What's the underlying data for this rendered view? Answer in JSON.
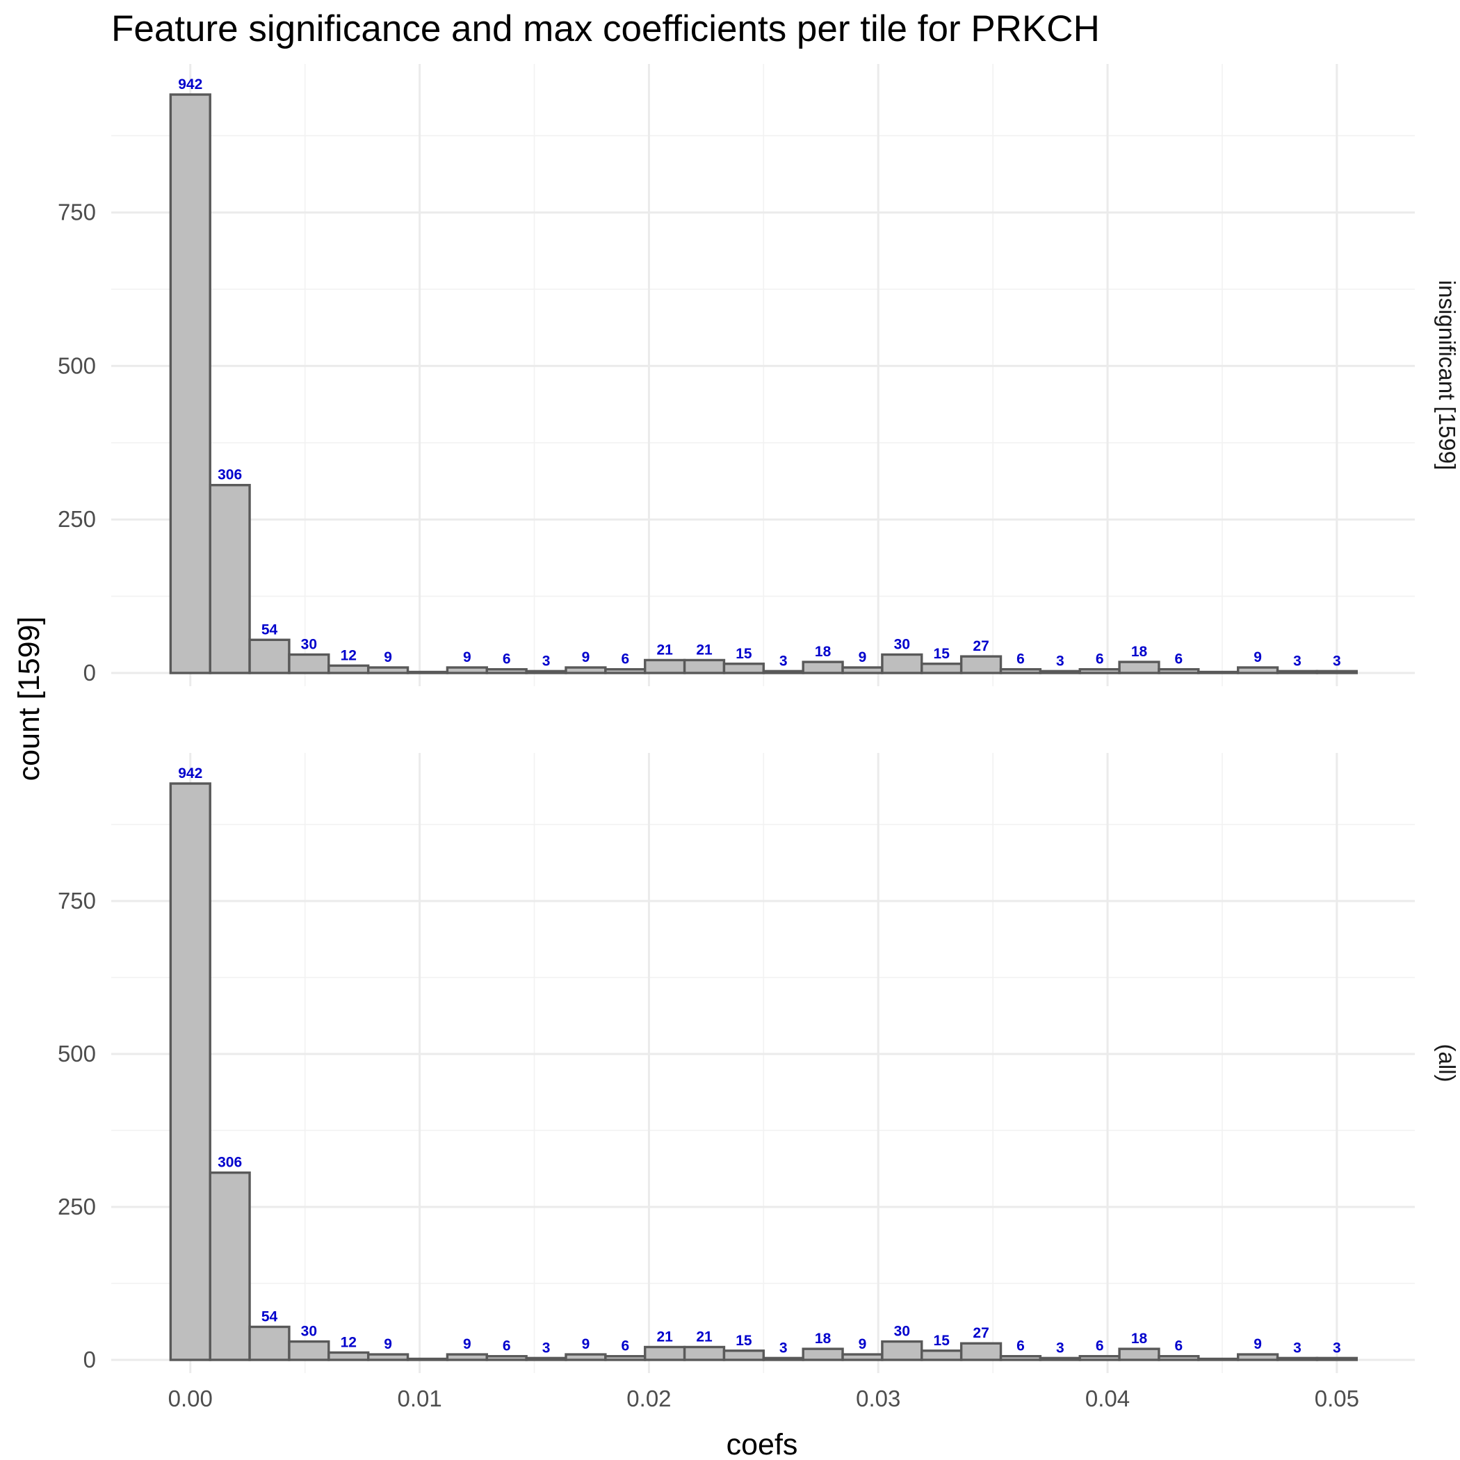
{
  "title": "Feature significance and max coefficients per tile for PRKCH",
  "chart_data": {
    "type": "bar",
    "subtype": "histogram",
    "title": "Feature significance and max coefficients per tile for PRKCH",
    "xlabel": "coefs",
    "ylabel": "count [1599]",
    "x_ticks": [
      "0.00",
      "0.01",
      "0.02",
      "0.03",
      "0.04",
      "0.05"
    ],
    "x_tick_values": [
      0,
      0.01,
      0.02,
      0.03,
      0.04,
      0.05
    ],
    "y_ticks": [
      "0",
      "250",
      "500",
      "750"
    ],
    "y_tick_values": [
      0,
      250,
      500,
      750
    ],
    "xlim": [
      -0.00345,
      0.0534
    ],
    "ylim": [
      0,
      990
    ],
    "bin_width": 0.001724,
    "bin_centers": [
      0,
      0.001724,
      0.003448,
      0.005172,
      0.006897,
      0.008621,
      0.010345,
      0.012069,
      0.013793,
      0.015517,
      0.017241,
      0.018966,
      0.02069,
      0.022414,
      0.024138,
      0.025862,
      0.027586,
      0.02931,
      0.031034,
      0.032759,
      0.034483,
      0.036207,
      0.037931,
      0.039655,
      0.041379,
      0.043103,
      0.044828,
      0.046552,
      0.048276,
      0.05
    ],
    "grid": true,
    "legend": "none",
    "bar_fill": "#bebebe",
    "bar_outline": "#595959",
    "label_color": "#0000cc",
    "panels": [
      {
        "strip_label": "insignificant [1599]",
        "values": [
          942,
          306,
          54,
          30,
          12,
          9,
          0,
          9,
          6,
          3,
          9,
          6,
          21,
          21,
          15,
          3,
          18,
          9,
          30,
          15,
          27,
          6,
          3,
          6,
          18,
          6,
          0,
          9,
          3,
          3
        ],
        "labels": [
          "942",
          "306",
          "54",
          "30",
          "12",
          "9",
          "",
          "9",
          "6",
          "3",
          "9",
          "6",
          "21",
          "21",
          "15",
          "3",
          "18",
          "9",
          "30",
          "15",
          "27",
          "6",
          "3",
          "6",
          "18",
          "6",
          "",
          "9",
          "3",
          "3"
        ]
      },
      {
        "strip_label": "(all)",
        "values": [
          942,
          306,
          54,
          30,
          12,
          9,
          0,
          9,
          6,
          3,
          9,
          6,
          21,
          21,
          15,
          3,
          18,
          9,
          30,
          15,
          27,
          6,
          3,
          6,
          18,
          6,
          0,
          9,
          3,
          3
        ],
        "labels": [
          "942",
          "306",
          "54",
          "30",
          "12",
          "9",
          "",
          "9",
          "6",
          "3",
          "9",
          "6",
          "21",
          "21",
          "15",
          "3",
          "18",
          "9",
          "30",
          "15",
          "27",
          "6",
          "3",
          "6",
          "18",
          "6",
          "",
          "9",
          "3",
          "3"
        ]
      }
    ]
  }
}
